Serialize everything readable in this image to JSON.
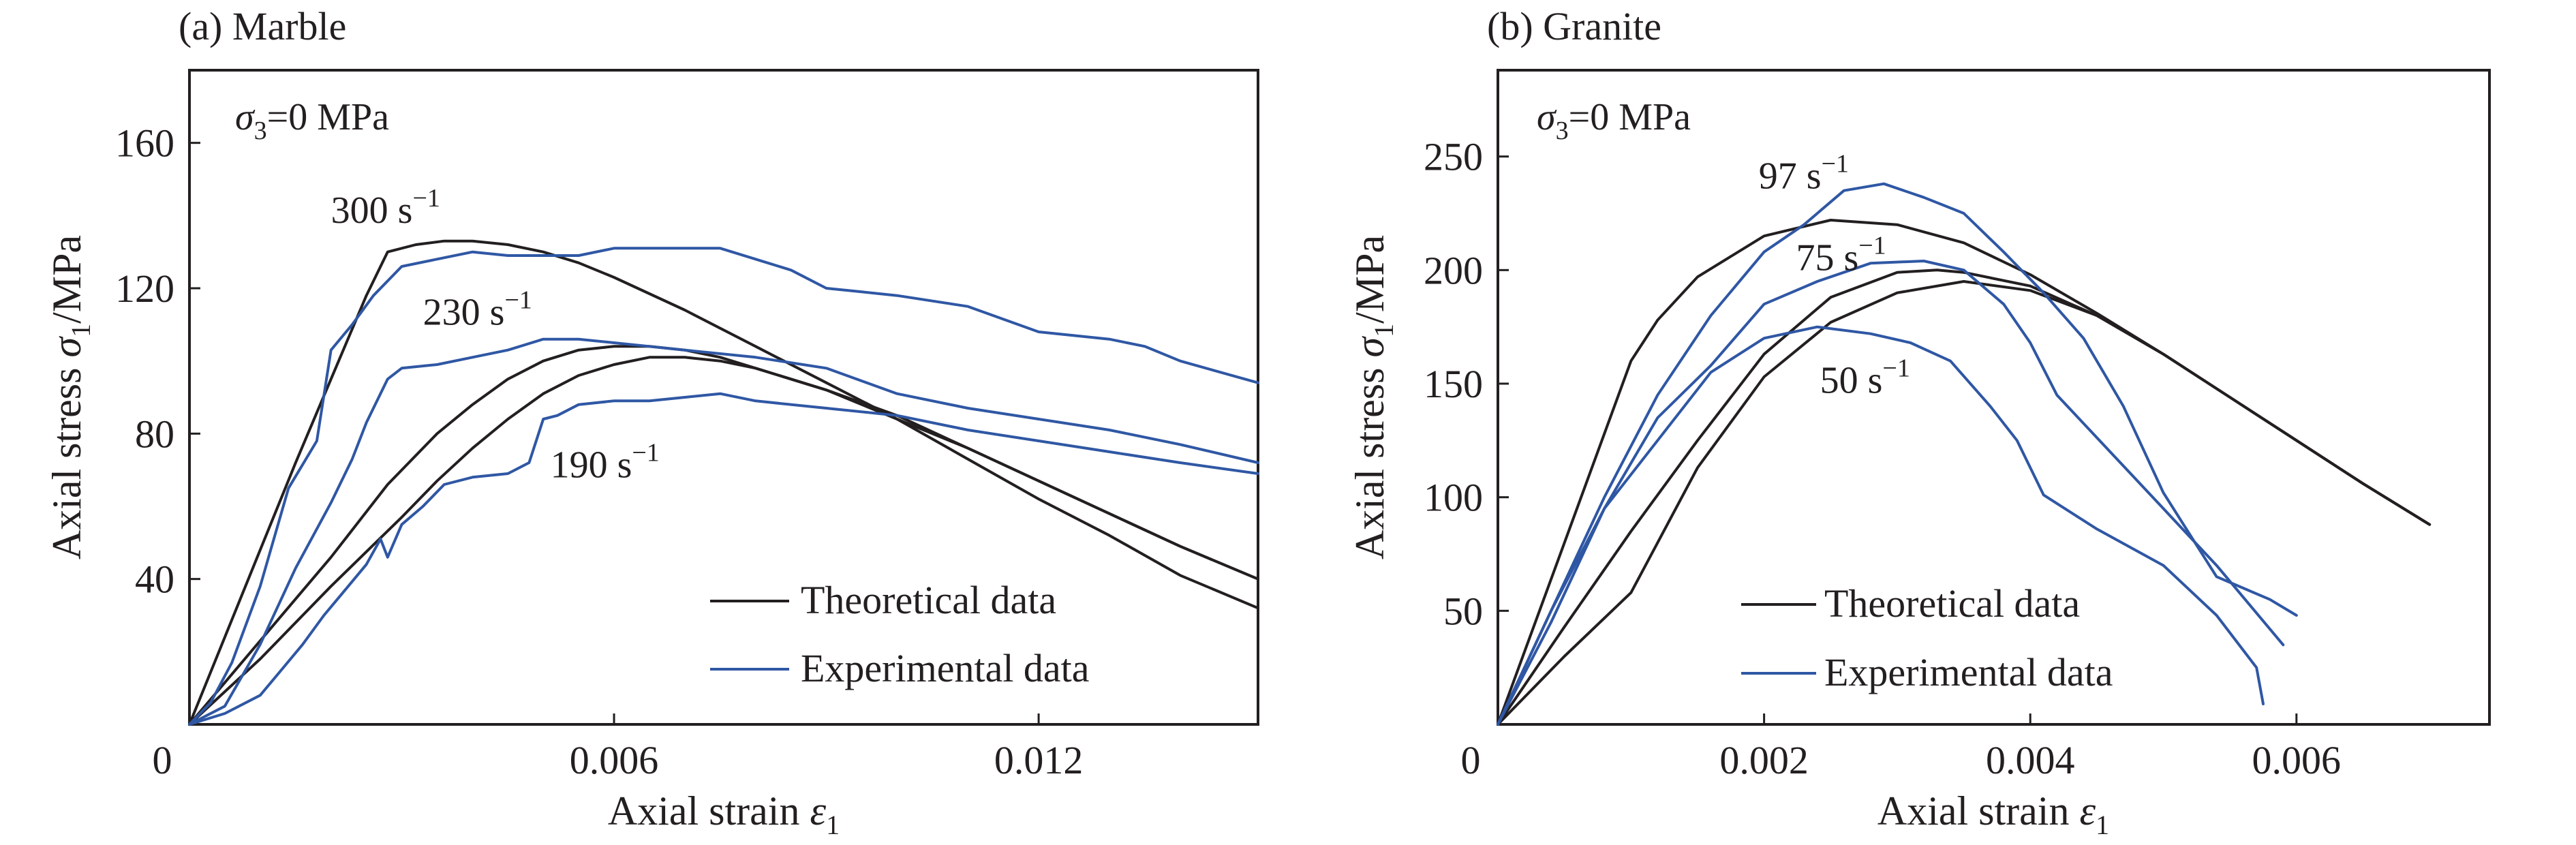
{
  "colors": {
    "theoretical": "#231f20",
    "experimental": "#2f57a4",
    "axes": "#231f20"
  },
  "chart_data": [
    {
      "type": "line",
      "title": "(a) Marble",
      "xlabel": "Axial strain",
      "xlabel_sym": "ε",
      "xlabel_sub": "1",
      "ylabel": "Axial stress",
      "ylabel_sym": "σ",
      "ylabel_sub": "1",
      "ylabel_unit": "/MPa",
      "xlim": [
        0,
        0.0151
      ],
      "ylim": [
        0,
        180
      ],
      "xticks": [
        0,
        0.006,
        0.012
      ],
      "xtick_labels": [
        "0",
        "0.006",
        "0.012"
      ],
      "yticks": [
        40,
        80,
        120,
        160
      ],
      "ytick_labels": [
        "40",
        "80",
        "120",
        "160"
      ],
      "condition": {
        "sym": "σ",
        "sub": "3",
        "text": "=0 MPa"
      },
      "legend": {
        "position": "lower-right",
        "entries": [
          "Theoretical data",
          "Experimental data"
        ]
      },
      "annotations": [
        {
          "text": "300 s",
          "sup": "−1",
          "x": 0.002,
          "y": 138
        },
        {
          "text": "230 s",
          "sup": "−1",
          "x": 0.0033,
          "y": 110
        },
        {
          "text": "190 s",
          "sup": "−1",
          "x": 0.0051,
          "y": 68
        }
      ],
      "series": [
        {
          "kind": "theoretical",
          "label": "300 s⁻¹",
          "x": [
            0,
            0.0005,
            0.001,
            0.0015,
            0.002,
            0.0025,
            0.0028,
            0.0032,
            0.0036,
            0.004,
            0.0045,
            0.005,
            0.0055,
            0.006,
            0.007,
            0.008,
            0.009,
            0.01,
            0.011,
            0.012,
            0.013,
            0.014,
            0.0151
          ],
          "y": [
            0,
            24,
            48,
            72,
            95,
            118,
            130,
            132,
            133,
            133,
            132,
            130,
            127,
            123,
            114,
            104,
            94,
            84,
            73,
            62,
            52,
            41,
            32
          ]
        },
        {
          "kind": "theoretical",
          "label": "230 s⁻¹",
          "x": [
            0,
            0.001,
            0.002,
            0.0028,
            0.0035,
            0.004,
            0.0045,
            0.005,
            0.0055,
            0.006,
            0.0065,
            0.007,
            0.0075,
            0.008,
            0.009,
            0.01,
            0.011,
            0.012,
            0.013,
            0.014,
            0.0151
          ],
          "y": [
            0,
            23,
            46,
            66,
            80,
            88,
            95,
            100,
            103,
            104,
            104,
            103,
            101,
            98,
            92,
            84,
            76,
            67,
            58,
            49,
            40
          ]
        },
        {
          "kind": "theoretical",
          "label": "190 s⁻¹",
          "x": [
            0,
            0.001,
            0.002,
            0.003,
            0.0035,
            0.004,
            0.0045,
            0.005,
            0.0055,
            0.006,
            0.0065,
            0.007,
            0.0075,
            0.008,
            0.009,
            0.01,
            0.011,
            0.012,
            0.013,
            0.014,
            0.0151
          ],
          "y": [
            0,
            18,
            38,
            57,
            67,
            76,
            84,
            91,
            96,
            99,
            101,
            101,
            100,
            98,
            92,
            85,
            76,
            67,
            58,
            49,
            40
          ]
        },
        {
          "kind": "experimental",
          "label": "300 s⁻¹",
          "x": [
            0,
            0.0003,
            0.0006,
            0.001,
            0.0014,
            0.0018,
            0.002,
            0.0023,
            0.0026,
            0.003,
            0.0035,
            0.004,
            0.0045,
            0.005,
            0.0055,
            0.006,
            0.0065,
            0.007,
            0.0075,
            0.008,
            0.0085,
            0.009,
            0.0095,
            0.01,
            0.011,
            0.012,
            0.013,
            0.0135,
            0.014,
            0.0151
          ],
          "y": [
            0,
            6,
            17,
            38,
            65,
            78,
            103,
            110,
            118,
            126,
            128,
            130,
            129,
            129,
            129,
            131,
            131,
            131,
            131,
            128,
            125,
            120,
            119,
            118,
            115,
            108,
            106,
            104,
            100,
            94
          ]
        },
        {
          "kind": "experimental",
          "label": "230 s⁻¹",
          "x": [
            0,
            0.0005,
            0.001,
            0.0015,
            0.002,
            0.0023,
            0.0025,
            0.0028,
            0.003,
            0.0035,
            0.004,
            0.0045,
            0.005,
            0.0055,
            0.006,
            0.007,
            0.008,
            0.009,
            0.01,
            0.011,
            0.012,
            0.013,
            0.014,
            0.0151
          ],
          "y": [
            0,
            5,
            22,
            43,
            61,
            73,
            83,
            95,
            98,
            99,
            101,
            103,
            106,
            106,
            105,
            103,
            101,
            98,
            91,
            87,
            84,
            81,
            77,
            72
          ]
        },
        {
          "kind": "experimental",
          "label": "190 s⁻¹",
          "x": [
            0,
            0.0005,
            0.001,
            0.0013,
            0.0016,
            0.0019,
            0.0022,
            0.0025,
            0.0027,
            0.0028,
            0.003,
            0.0033,
            0.0036,
            0.004,
            0.0045,
            0.0048,
            0.005,
            0.0052,
            0.0055,
            0.006,
            0.0065,
            0.007,
            0.0075,
            0.008,
            0.009,
            0.01,
            0.011,
            0.012,
            0.013,
            0.014,
            0.0151
          ],
          "y": [
            0,
            3,
            8,
            15,
            22,
            30,
            37,
            44,
            51,
            46,
            55,
            60,
            66,
            68,
            69,
            72,
            84,
            85,
            88,
            89,
            89,
            90,
            91,
            89,
            87,
            85,
            81,
            78,
            75,
            72,
            69
          ]
        }
      ]
    },
    {
      "type": "line",
      "title": "(b) Granite",
      "xlabel": "Axial strain",
      "xlabel_sym": "ε",
      "xlabel_sub": "1",
      "ylabel": "Axial stress",
      "ylabel_sym": "σ",
      "ylabel_sub": "1",
      "ylabel_unit": "/MPa",
      "xlim": [
        0,
        0.00745
      ],
      "ylim": [
        0,
        288
      ],
      "xticks": [
        0,
        0.002,
        0.004,
        0.006
      ],
      "xtick_labels": [
        "0",
        "0.002",
        "0.004",
        "0.006"
      ],
      "yticks": [
        50,
        100,
        150,
        200,
        250
      ],
      "ytick_labels": [
        "50",
        "100",
        "150",
        "200",
        "250"
      ],
      "condition": {
        "sym": "σ",
        "sub": "3",
        "text": "=0 MPa"
      },
      "legend": {
        "position": "lower-right",
        "entries": [
          "Theoretical data",
          "Experimental data"
        ]
      },
      "annotations": [
        {
          "text": "97 s",
          "sup": "−1",
          "x": 0.00196,
          "y": 236
        },
        {
          "text": "75 s",
          "sup": "−1",
          "x": 0.00224,
          "y": 200
        },
        {
          "text": "50 s",
          "sup": "−1",
          "x": 0.00242,
          "y": 146
        }
      ],
      "series": [
        {
          "kind": "theoretical",
          "label": "97 s⁻¹",
          "x": [
            0,
            0.0005,
            0.001,
            0.0012,
            0.0015,
            0.002,
            0.0025,
            0.003,
            0.0035,
            0.004,
            0.0045,
            0.005,
            0.0055,
            0.006,
            0.0065,
            0.007
          ],
          "y": [
            0,
            80,
            160,
            178,
            197,
            215,
            222,
            220,
            212,
            198,
            181,
            163,
            144,
            125,
            106,
            88
          ]
        },
        {
          "kind": "theoretical",
          "label": "75 s⁻¹",
          "x": [
            0,
            0.0005,
            0.001,
            0.0015,
            0.002,
            0.0025,
            0.003,
            0.0033,
            0.0035,
            0.004,
            0.0045,
            0.005,
            0.0055,
            0.006,
            0.0065,
            0.007
          ],
          "y": [
            0,
            43,
            85,
            125,
            163,
            188,
            199,
            200,
            199,
            193,
            180,
            163,
            144,
            125,
            106,
            88
          ]
        },
        {
          "kind": "theoretical",
          "label": "50 s⁻¹",
          "x": [
            0,
            0.0005,
            0.001,
            0.0015,
            0.002,
            0.0025,
            0.003,
            0.0035,
            0.004,
            0.0045,
            0.005,
            0.0055,
            0.006,
            0.0065,
            0.007
          ],
          "y": [
            0,
            30,
            58,
            113,
            153,
            177,
            190,
            195,
            191,
            180,
            163,
            144,
            125,
            106,
            88
          ]
        },
        {
          "kind": "experimental",
          "label": "97 s⁻¹",
          "x": [
            0,
            0.0004,
            0.0008,
            0.0012,
            0.0016,
            0.002,
            0.0023,
            0.0026,
            0.0029,
            0.0032,
            0.0035,
            0.0038,
            0.0041,
            0.0044,
            0.0047,
            0.005,
            0.0054,
            0.0058,
            0.006
          ],
          "y": [
            0,
            50,
            100,
            145,
            180,
            208,
            220,
            235,
            238,
            232,
            225,
            208,
            190,
            170,
            140,
            102,
            65,
            55,
            48
          ]
        },
        {
          "kind": "experimental",
          "label": "75 s⁻¹",
          "x": [
            0,
            0.0004,
            0.0008,
            0.0012,
            0.0016,
            0.002,
            0.0024,
            0.0028,
            0.0032,
            0.0035,
            0.0038,
            0.004,
            0.0042,
            0.0046,
            0.005,
            0.0054,
            0.0059
          ],
          "y": [
            0,
            45,
            95,
            135,
            158,
            185,
            195,
            203,
            204,
            200,
            185,
            168,
            145,
            120,
            95,
            70,
            35
          ]
        },
        {
          "kind": "experimental",
          "label": "50 s⁻¹",
          "x": [
            0,
            0.0004,
            0.0008,
            0.0012,
            0.0016,
            0.002,
            0.0024,
            0.0028,
            0.0031,
            0.0034,
            0.0037,
            0.0039,
            0.0041,
            0.0045,
            0.005,
            0.0054,
            0.0057,
            0.00575
          ],
          "y": [
            0,
            50,
            95,
            125,
            155,
            170,
            175,
            172,
            168,
            160,
            140,
            125,
            101,
            86,
            70,
            48,
            25,
            9
          ]
        }
      ]
    }
  ]
}
